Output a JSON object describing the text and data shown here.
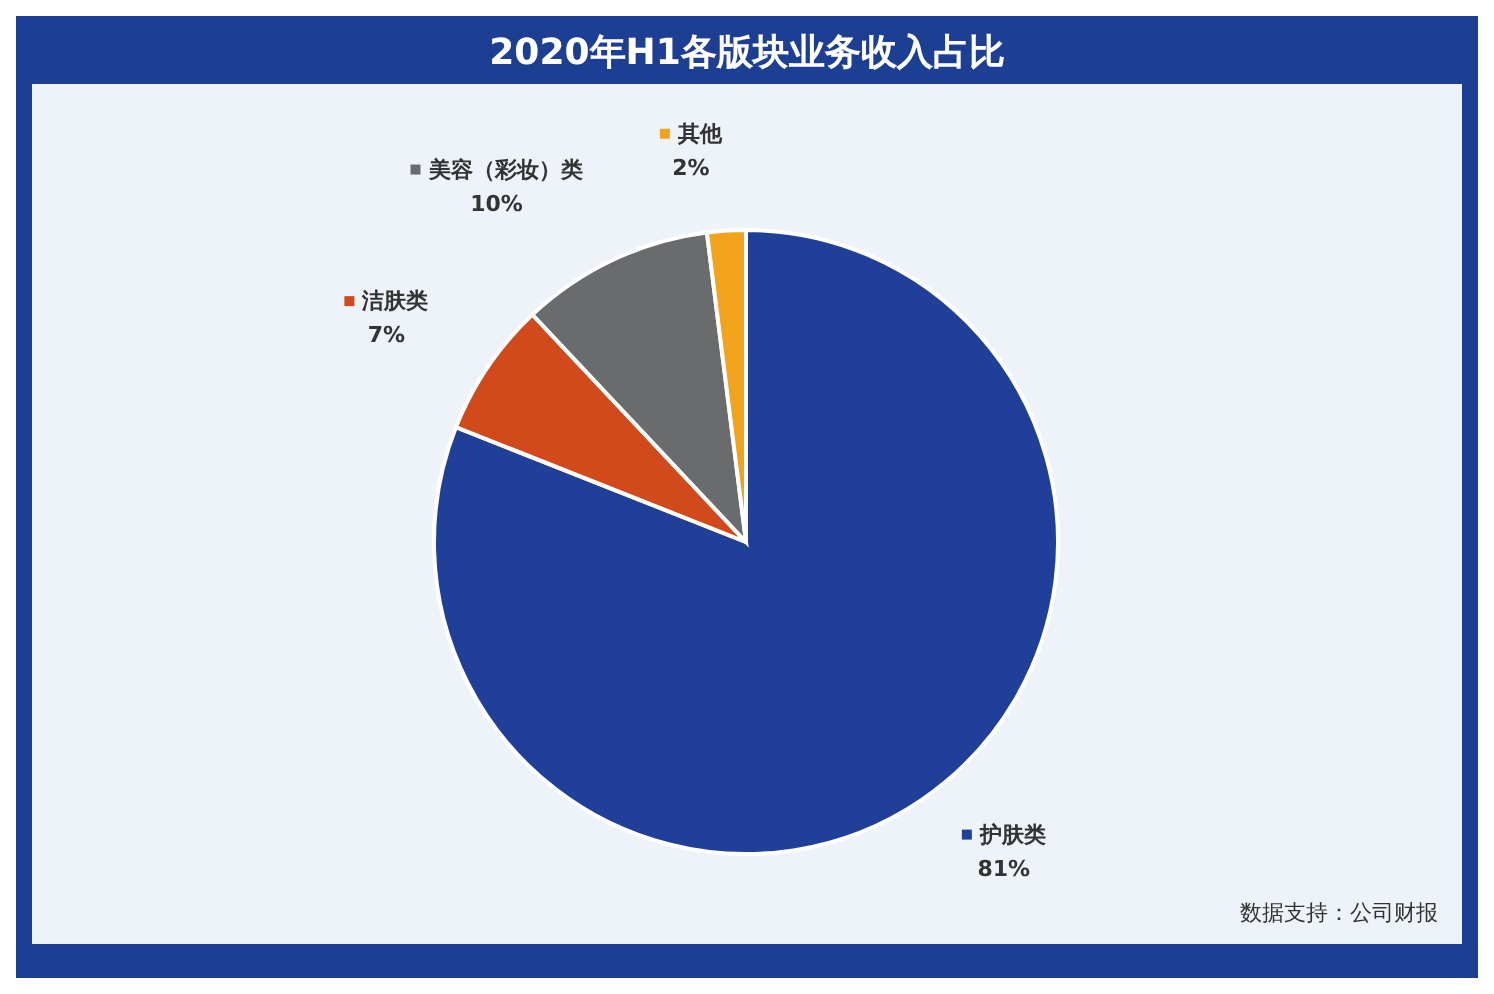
{
  "chart_data": {
    "type": "pie",
    "title": "2020年H1各版块业务收入占比",
    "categories": [
      "护肤类",
      "洁肤类",
      "美容（彩妆）类",
      "其他"
    ],
    "values": [
      81,
      7,
      10,
      2
    ],
    "value_labels": [
      "81%",
      "7%",
      "10%",
      "2%"
    ],
    "colors": [
      "#203f99",
      "#d2491b",
      "#696b6d",
      "#f2a31c"
    ],
    "annotations": [
      "数据支持：公司财报"
    ],
    "legend": "top left"
  }
}
